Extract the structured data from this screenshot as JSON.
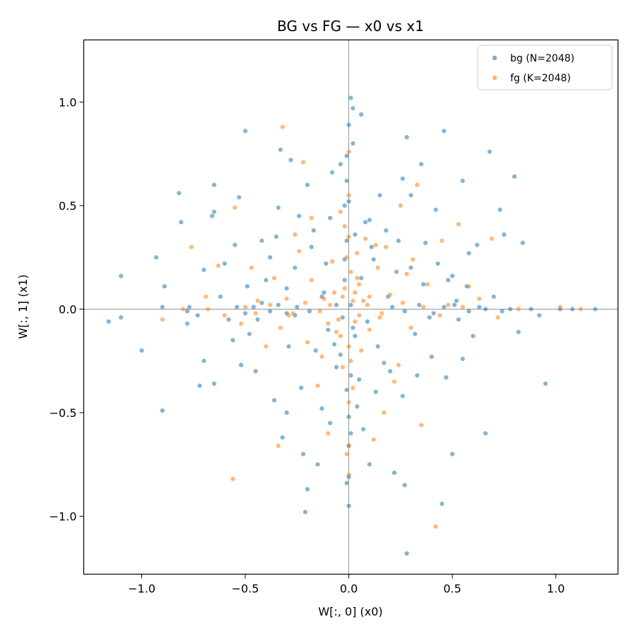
{
  "chart_data": {
    "type": "scatter",
    "title": "BG vs FG — x0 vs x1",
    "xlabel": "W[:, 0]  (x0)",
    "ylabel": "W[:, 1]  (x1)",
    "xlim": [
      -1.28,
      1.3
    ],
    "ylim": [
      -1.28,
      1.3
    ],
    "xticks": [
      -1.0,
      -0.5,
      0.0,
      0.5,
      1.0
    ],
    "yticks": [
      -1.0,
      -0.5,
      0.0,
      0.5,
      1.0
    ],
    "xtick_labels": [
      "−1.0",
      "−0.5",
      "0.0",
      "0.5",
      "1.0"
    ],
    "ytick_labels": [
      "−1.0",
      "−0.5",
      "0.0",
      "0.5",
      "1.0"
    ],
    "grid": false,
    "reference_lines": {
      "x": 0,
      "y": 0
    },
    "legend_placement": "top-right",
    "series": [
      {
        "name": "bg (N=2048)",
        "color": "#1f77b4",
        "points": [
          [
            -1.16,
            -0.06
          ],
          [
            -1.1,
            0.16
          ],
          [
            -1.1,
            -0.04
          ],
          [
            -1.0,
            -0.2
          ],
          [
            -0.9,
            0.01
          ],
          [
            -0.9,
            -0.49
          ],
          [
            -0.89,
            0.11
          ],
          [
            -0.93,
            0.25
          ],
          [
            -0.82,
            0.56
          ],
          [
            -0.81,
            0.42
          ],
          [
            -0.78,
            -0.07
          ],
          [
            -0.78,
            -0.01
          ],
          [
            -0.77,
            0.01
          ],
          [
            -0.73,
            -0.03
          ],
          [
            -0.72,
            -0.37
          ],
          [
            -0.7,
            0.19
          ],
          [
            -0.7,
            -0.25
          ],
          [
            -0.66,
            0.45
          ],
          [
            -0.65,
            0.47
          ],
          [
            -0.65,
            0.6
          ],
          [
            -0.65,
            -0.36
          ],
          [
            -0.6,
            0.22
          ],
          [
            -0.56,
            -0.15
          ],
          [
            -0.53,
            0.54
          ],
          [
            -0.5,
            0.86
          ],
          [
            -0.49,
            0.11
          ],
          [
            -0.46,
            0.01
          ],
          [
            -0.45,
            -0.3
          ],
          [
            -0.44,
            -0.05
          ],
          [
            -0.42,
            0.33
          ],
          [
            -0.4,
            0.14
          ],
          [
            -0.38,
            0.25
          ],
          [
            -0.35,
            0.35
          ],
          [
            -0.33,
            0.77
          ],
          [
            -0.32,
            -0.62
          ],
          [
            -0.3,
            -0.5
          ],
          [
            -0.3,
            0.1
          ],
          [
            -0.28,
            0.72
          ],
          [
            -0.26,
            -0.03
          ],
          [
            -0.24,
            0.45
          ],
          [
            -0.22,
            -0.7
          ],
          [
            -0.2,
            -0.87
          ],
          [
            -0.21,
            -0.98
          ],
          [
            -0.2,
            0.6
          ],
          [
            -0.18,
            0.3
          ],
          [
            -0.15,
            -0.75
          ],
          [
            -0.13,
            -0.48
          ],
          [
            -0.13,
            0.06
          ],
          [
            -0.12,
            0.08
          ],
          [
            -0.1,
            -0.1
          ],
          [
            -0.09,
            0.44
          ],
          [
            -0.08,
            0.66
          ],
          [
            -0.07,
            -0.17
          ],
          [
            -0.06,
            0.02
          ],
          [
            -0.06,
            -0.28
          ],
          [
            -0.04,
            0.7
          ],
          [
            -0.03,
            -0.04
          ],
          [
            -0.02,
            0.24
          ],
          [
            -0.02,
            0.5
          ],
          [
            -0.01,
            -0.84
          ],
          [
            -0.01,
            -0.39
          ],
          [
            0.0,
            0.89
          ],
          [
            0.0,
            0.52
          ],
          [
            -0.01,
            0.74
          ],
          [
            0.0,
            -0.95
          ],
          [
            0.0,
            -0.81
          ],
          [
            0.0,
            -0.66
          ],
          [
            0.0,
            -0.52
          ],
          [
            0.01,
            0.02
          ],
          [
            0.01,
            1.02
          ],
          [
            0.02,
            0.97
          ],
          [
            0.02,
            0.8
          ],
          [
            0.03,
            0.36
          ],
          [
            0.03,
            -0.13
          ],
          [
            0.05,
            -0.34
          ],
          [
            0.06,
            0.15
          ],
          [
            0.06,
            0.94
          ],
          [
            0.07,
            -0.58
          ],
          [
            0.09,
            -0.06
          ],
          [
            0.1,
            0.43
          ],
          [
            0.1,
            -0.75
          ],
          [
            0.12,
            0.24
          ],
          [
            0.13,
            -0.4
          ],
          [
            0.15,
            0.55
          ],
          [
            0.17,
            -0.26
          ],
          [
            0.19,
            0.06
          ],
          [
            0.22,
            -0.79
          ],
          [
            0.24,
            0.33
          ],
          [
            0.26,
            0.63
          ],
          [
            0.27,
            -0.85
          ],
          [
            0.28,
            0.83
          ],
          [
            0.28,
            -1.18
          ],
          [
            0.3,
            0.55
          ],
          [
            0.32,
            -0.12
          ],
          [
            0.35,
            0.7
          ],
          [
            0.37,
            0.32
          ],
          [
            0.39,
            -0.04
          ],
          [
            0.42,
            0.48
          ],
          [
            0.45,
            -0.94
          ],
          [
            0.46,
            0.86
          ],
          [
            0.48,
            0.14
          ],
          [
            0.5,
            -0.7
          ],
          [
            0.52,
            0.04
          ],
          [
            0.55,
            0.62
          ],
          [
            0.55,
            -0.24
          ],
          [
            0.58,
            0.27
          ],
          [
            0.6,
            -0.13
          ],
          [
            0.62,
            0.31
          ],
          [
            0.63,
            0.01
          ],
          [
            0.66,
            -0.6
          ],
          [
            0.68,
            0.76
          ],
          [
            0.7,
            0.06
          ],
          [
            0.73,
            0.48
          ],
          [
            0.75,
            0.36
          ],
          [
            0.78,
            0.0
          ],
          [
            0.8,
            0.64
          ],
          [
            0.82,
            -0.11
          ],
          [
            0.84,
            0.32
          ],
          [
            0.88,
            0.0
          ],
          [
            0.92,
            -0.03
          ],
          [
            0.95,
            -0.36
          ],
          [
            1.02,
            0.0
          ],
          [
            1.08,
            0.0
          ],
          [
            1.19,
            0.0
          ],
          [
            -0.55,
            0.31
          ],
          [
            -0.52,
            -0.27
          ],
          [
            -0.48,
            -0.12
          ],
          [
            -0.36,
            -0.44
          ],
          [
            -0.34,
            0.49
          ],
          [
            -0.29,
            -0.18
          ],
          [
            -0.26,
            0.2
          ],
          [
            -0.23,
            -0.38
          ],
          [
            -0.17,
            0.38
          ],
          [
            -0.16,
            -0.2
          ],
          [
            -0.11,
            0.22
          ],
          [
            -0.09,
            -0.55
          ],
          [
            -0.04,
            -0.22
          ],
          [
            0.04,
            -0.47
          ],
          [
            0.08,
            0.42
          ],
          [
            0.11,
            0.3
          ],
          [
            0.14,
            -0.18
          ],
          [
            0.18,
            0.38
          ],
          [
            0.2,
            -0.3
          ],
          [
            0.23,
            0.18
          ],
          [
            0.26,
            -0.42
          ],
          [
            0.3,
            0.2
          ],
          [
            0.33,
            -0.32
          ],
          [
            0.36,
            0.12
          ],
          [
            0.4,
            -0.23
          ],
          [
            0.43,
            0.22
          ],
          [
            0.47,
            -0.33
          ],
          [
            0.5,
            0.16
          ],
          [
            0.53,
            -0.05
          ],
          [
            0.57,
            0.11
          ],
          [
            -0.62,
            0.06
          ],
          [
            -0.58,
            -0.05
          ],
          [
            -0.54,
            0.01
          ],
          [
            -0.5,
            -0.02
          ],
          [
            -0.42,
            0.03
          ],
          [
            -0.38,
            -0.01
          ],
          [
            -0.34,
            0.02
          ],
          [
            -0.3,
            -0.02
          ],
          [
            -0.25,
            0.01
          ],
          [
            -0.19,
            -0.01
          ],
          [
            0.21,
            0.01
          ],
          [
            0.27,
            -0.01
          ],
          [
            0.34,
            0.02
          ],
          [
            0.41,
            -0.02
          ],
          [
            0.46,
            0.01
          ],
          [
            0.51,
            0.02
          ],
          [
            0.58,
            -0.01
          ],
          [
            0.66,
            0.0
          ],
          [
            0.74,
            -0.01
          ],
          [
            -0.01,
            0.62
          ],
          [
            0.01,
            -0.6
          ],
          [
            -0.01,
            0.33
          ],
          [
            0.01,
            -0.32
          ],
          [
            -0.02,
            0.14
          ],
          [
            0.02,
            -0.09
          ]
        ]
      },
      {
        "name": "fg (K=2048)",
        "color": "#ff7f0e",
        "points": [
          [
            -0.9,
            -0.05
          ],
          [
            -0.8,
            0.0
          ],
          [
            -0.76,
            0.3
          ],
          [
            -0.69,
            0.06
          ],
          [
            -0.63,
            0.21
          ],
          [
            -0.55,
            0.49
          ],
          [
            -0.56,
            -0.82
          ],
          [
            -0.52,
            -0.07
          ],
          [
            -0.5,
            0.01
          ],
          [
            -0.47,
            0.2
          ],
          [
            -0.44,
            0.04
          ],
          [
            -0.4,
            -0.18
          ],
          [
            -0.36,
            0.15
          ],
          [
            -0.34,
            -0.66
          ],
          [
            -0.32,
            0.88
          ],
          [
            -0.3,
            0.05
          ],
          [
            -0.27,
            -0.02
          ],
          [
            -0.24,
            0.28
          ],
          [
            -0.22,
            0.71
          ],
          [
            -0.2,
            -0.16
          ],
          [
            -0.18,
            0.14
          ],
          [
            -0.15,
            -0.37
          ],
          [
            -0.12,
            0.05
          ],
          [
            -0.1,
            -0.6
          ],
          [
            -0.08,
            0.23
          ],
          [
            -0.06,
            -0.11
          ],
          [
            -0.04,
            0.47
          ],
          [
            -0.03,
            -0.28
          ],
          [
            -0.02,
            0.1
          ],
          [
            -0.01,
            -0.7
          ],
          [
            0.0,
            0.76
          ],
          [
            0.0,
            0.55
          ],
          [
            0.0,
            0.35
          ],
          [
            0.0,
            -0.18
          ],
          [
            0.0,
            -0.45
          ],
          [
            0.0,
            -0.66
          ],
          [
            0.0,
            -0.8
          ],
          [
            0.01,
            0.18
          ],
          [
            0.02,
            0.04
          ],
          [
            0.03,
            -0.06
          ],
          [
            0.04,
            0.27
          ],
          [
            0.05,
            0.12
          ],
          [
            0.06,
            -0.2
          ],
          [
            0.08,
            0.34
          ],
          [
            0.1,
            -0.1
          ],
          [
            0.12,
            -0.63
          ],
          [
            0.14,
            0.2
          ],
          [
            0.16,
            -0.02
          ],
          [
            0.18,
            0.3
          ],
          [
            0.2,
            0.07
          ],
          [
            0.22,
            -0.35
          ],
          [
            0.25,
            0.5
          ],
          [
            0.28,
            0.17
          ],
          [
            0.3,
            -0.09
          ],
          [
            0.33,
            0.6
          ],
          [
            0.35,
            -0.56
          ],
          [
            0.38,
            0.12
          ],
          [
            0.42,
            -1.05
          ],
          [
            0.45,
            0.33
          ],
          [
            0.48,
            0.02
          ],
          [
            0.53,
            0.41
          ],
          [
            0.58,
            0.11
          ],
          [
            0.63,
            0.05
          ],
          [
            0.69,
            0.34
          ],
          [
            0.72,
            -0.04
          ],
          [
            0.82,
            0.0
          ],
          [
            1.12,
            0.0
          ],
          [
            1.02,
            0.01
          ],
          [
            -0.68,
            0.0
          ],
          [
            -0.6,
            -0.03
          ],
          [
            -0.45,
            -0.02
          ],
          [
            -0.38,
            0.02
          ],
          [
            -0.29,
            -0.03
          ],
          [
            -0.21,
            0.03
          ],
          [
            -0.14,
            -0.01
          ],
          [
            -0.09,
            0.02
          ],
          [
            0.09,
            0.02
          ],
          [
            0.15,
            -0.04
          ],
          [
            0.26,
            0.03
          ],
          [
            0.36,
            0.01
          ],
          [
            0.44,
            -0.03
          ],
          [
            0.55,
            0.01
          ],
          [
            -0.02,
            0.4
          ],
          [
            0.02,
            -0.38
          ],
          [
            -0.01,
            0.25
          ],
          [
            0.01,
            -0.25
          ],
          [
            -0.03,
            0.06
          ],
          [
            0.03,
            0.08
          ],
          [
            -0.05,
            -0.05
          ],
          [
            0.05,
            -0.03
          ],
          [
            -0.07,
            0.08
          ],
          [
            0.07,
            0.04
          ],
          [
            -0.04,
            -0.13
          ],
          [
            0.04,
            0.15
          ],
          [
            0.1,
            0.06
          ],
          [
            -0.1,
            -0.07
          ],
          [
            -0.33,
            -0.09
          ],
          [
            0.31,
            0.24
          ],
          [
            -0.26,
            0.36
          ],
          [
            0.24,
            -0.27
          ],
          [
            -0.13,
            -0.23
          ],
          [
            0.13,
            0.31
          ],
          [
            -0.18,
            0.44
          ],
          [
            0.17,
            -0.5
          ]
        ]
      }
    ]
  }
}
